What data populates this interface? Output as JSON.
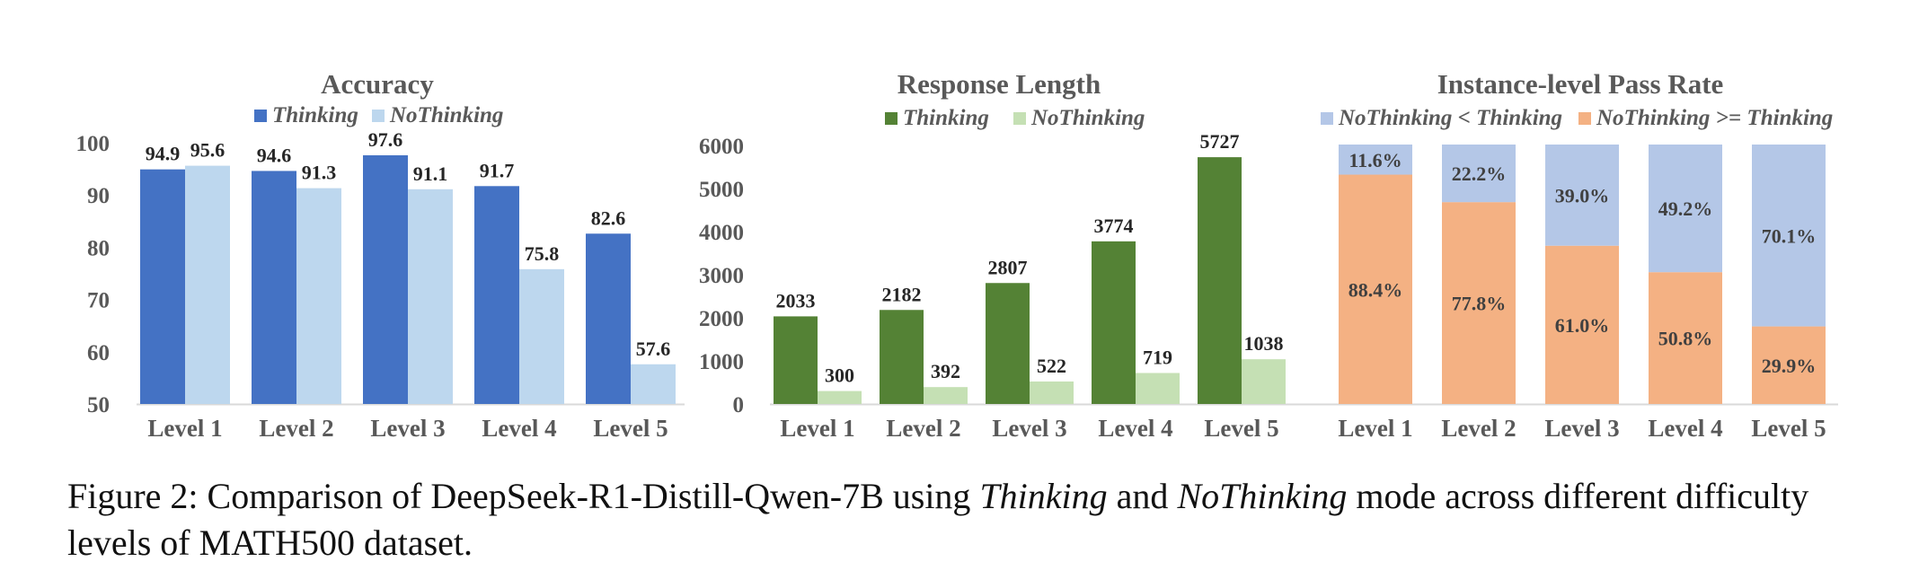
{
  "chart_data": [
    {
      "type": "bar",
      "title": "Accuracy",
      "categories": [
        "Level 1",
        "Level 2",
        "Level 3",
        "Level 4",
        "Level 5"
      ],
      "series": [
        {
          "name": "Thinking",
          "values": [
            94.9,
            94.6,
            97.6,
            91.7,
            82.6
          ],
          "labels": [
            "94.9",
            "94.6",
            "97.6",
            "91.7",
            "82.6"
          ],
          "color": "#4472C4"
        },
        {
          "name": "NoThinking",
          "values": [
            95.6,
            91.3,
            91.1,
            75.8,
            57.6
          ],
          "labels": [
            "95.6",
            "91.3",
            "91.1",
            "75.8",
            "57.6"
          ],
          "color": "#BDD7EE"
        }
      ],
      "ylim": [
        50,
        100
      ],
      "yticks": [
        50,
        60,
        70,
        80,
        90,
        100
      ],
      "ytick_labels": [
        "50",
        "60",
        "70",
        "80",
        "90",
        "100"
      ],
      "grid": false,
      "legend": "top-center"
    },
    {
      "type": "bar",
      "title": "Response Length",
      "categories": [
        "Level 1",
        "Level 2",
        "Level 3",
        "Level 4",
        "Level 5"
      ],
      "series": [
        {
          "name": "Thinking",
          "values": [
            2033,
            2182,
            2807,
            3774,
            5727
          ],
          "labels": [
            "2033",
            "2182",
            "2807",
            "3774",
            "5727"
          ],
          "color": "#548235"
        },
        {
          "name": "NoThinking",
          "values": [
            300,
            392,
            522,
            719,
            1038
          ],
          "labels": [
            "300",
            "392",
            "522",
            "719",
            "1038"
          ],
          "color": "#C5E0B4"
        }
      ],
      "ylim": [
        0,
        6000
      ],
      "yticks": [
        0,
        1000,
        2000,
        3000,
        4000,
        5000,
        6000
      ],
      "ytick_labels": [
        "0",
        "1000",
        "2000",
        "3000",
        "4000",
        "5000",
        "6000"
      ],
      "grid": false,
      "legend": "top-center"
    },
    {
      "type": "bar",
      "stacked": true,
      "title": "Instance-level Pass Rate",
      "categories": [
        "Level 1",
        "Level 2",
        "Level 3",
        "Level 4",
        "Level 5"
      ],
      "series": [
        {
          "name": "NoThinking >= Thinking",
          "values": [
            88.4,
            77.8,
            61.0,
            50.8,
            29.9
          ],
          "labels": [
            "88.4%",
            "77.8%",
            "61.0%",
            "50.8%",
            "29.9%"
          ],
          "color": "#F4B183"
        },
        {
          "name": "NoThinking < Thinking",
          "values": [
            11.6,
            22.2,
            39.0,
            49.2,
            70.1
          ],
          "labels": [
            "11.6%",
            "22.2%",
            "39.0%",
            "49.2%",
            "70.1%"
          ],
          "color": "#B4C7E7"
        }
      ],
      "legend_order": [
        1,
        0
      ],
      "ylim": [
        0,
        100
      ],
      "grid": false,
      "legend": "top-center"
    }
  ],
  "caption": {
    "prefix": "Figure 2: Comparison of DeepSeek-R1-Distill-Qwen-7B using ",
    "term1": "Thinking",
    "mid": " and ",
    "term2": "NoThinking",
    "suffix": " mode across different difficulty levels of MATH500 dataset."
  }
}
